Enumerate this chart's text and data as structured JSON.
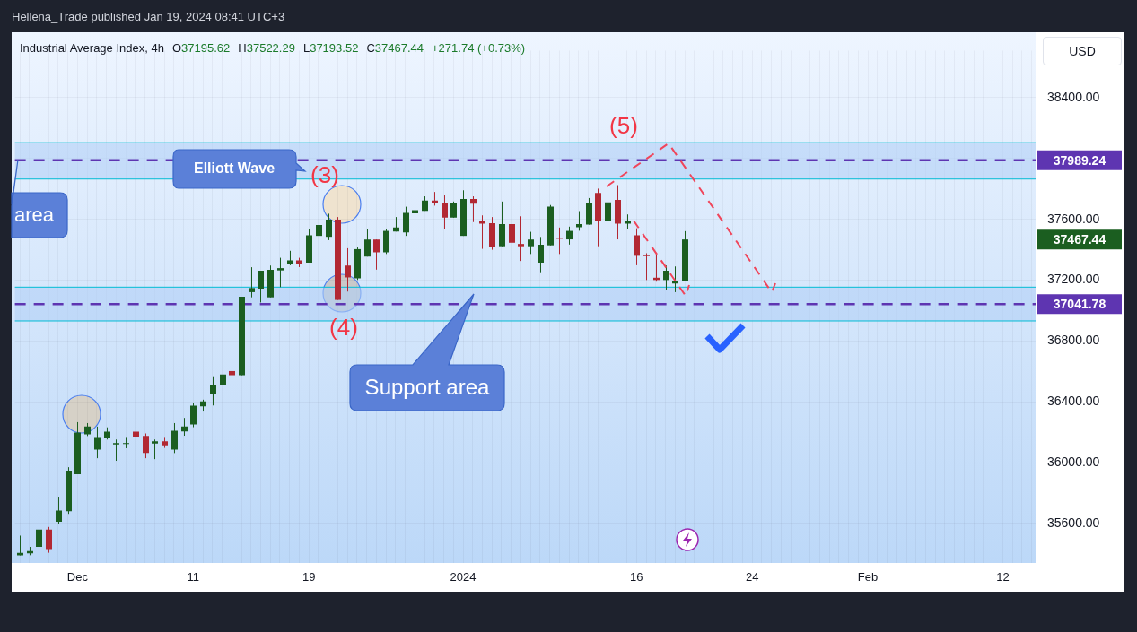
{
  "chart_data": {
    "type": "candlestick",
    "title": "Hellena_Trade published Jan 19, 2024 08:41 UTC+3",
    "subtitle": "Industrial Average Index, 4h",
    "ylabel": "USD",
    "categories": [
      null,
      null,
      null,
      null,
      null,
      null,
      "Dec",
      null,
      null,
      null,
      null,
      null,
      null,
      null,
      null,
      null,
      null,
      null,
      "11",
      null,
      null,
      null,
      null,
      null,
      null,
      null,
      null,
      null,
      null,
      null,
      "19",
      null,
      null,
      null,
      null,
      null,
      null,
      null,
      null,
      null,
      null,
      null,
      null,
      null,
      null,
      null,
      "2024",
      null,
      null,
      null,
      null,
      null,
      null,
      null,
      null,
      null,
      null,
      null,
      null,
      null,
      null,
      null,
      null,
      null,
      "16",
      null,
      null,
      null,
      null,
      null,
      null,
      null,
      null,
      null,
      null,
      null,
      "24",
      null,
      null,
      null,
      null,
      null,
      null,
      null,
      null,
      null,
      null,
      null,
      "Feb",
      null,
      null,
      null,
      null,
      null,
      null,
      null,
      null,
      null,
      null,
      null,
      null,
      null,
      "12",
      null,
      null,
      null
    ],
    "ohlc": [
      [
        35390,
        35520,
        35390,
        35407
      ],
      [
        35403,
        35446,
        35391,
        35418
      ],
      [
        35446,
        35560,
        35414,
        35560
      ],
      [
        35560,
        35577,
        35407,
        35431
      ],
      [
        35611,
        35776,
        35596,
        35685
      ],
      [
        35680,
        35970,
        35663,
        35947
      ],
      [
        35924,
        36266,
        35924,
        36198
      ],
      [
        36186,
        36260,
        36175,
        36237
      ],
      [
        36086,
        36237,
        36029,
        36163
      ],
      [
        36160,
        36232,
        36152,
        36203
      ],
      [
        36120,
        36152,
        36012,
        36129
      ],
      [
        36125,
        36163,
        36095,
        36129
      ],
      [
        36203,
        36294,
        36120,
        36171
      ],
      [
        36175,
        36192,
        36029,
        36063
      ],
      [
        36125,
        36152,
        36023,
        36141
      ],
      [
        36141,
        36163,
        36097,
        36114
      ],
      [
        36086,
        36260,
        36063,
        36209
      ],
      [
        36205,
        36294,
        36177,
        36237
      ],
      [
        36251,
        36391,
        36233,
        36374
      ],
      [
        36370,
        36414,
        36336,
        36402
      ],
      [
        36450,
        36568,
        36376,
        36511
      ],
      [
        36507,
        36596,
        36501,
        36579
      ],
      [
        36602,
        36619,
        36524,
        36575
      ],
      [
        36575,
        37091,
        36575,
        37091
      ],
      [
        37121,
        37285,
        37087,
        37148
      ],
      [
        37144,
        37262,
        37053,
        37262
      ],
      [
        37087,
        37296,
        37087,
        37268
      ],
      [
        37264,
        37347,
        37154,
        37279
      ],
      [
        37309,
        37393,
        37298,
        37330
      ],
      [
        37330,
        37347,
        37286,
        37304
      ],
      [
        37315,
        37537,
        37315,
        37495
      ],
      [
        37491,
        37563,
        37480,
        37563
      ],
      [
        37485,
        37637,
        37463,
        37598
      ],
      [
        37598,
        37615,
        37070,
        37070
      ],
      [
        37296,
        37410,
        37125,
        37218
      ],
      [
        37212,
        37415,
        37201,
        37404
      ],
      [
        37355,
        37535,
        37355,
        37467
      ],
      [
        37467,
        37467,
        37269,
        37383
      ],
      [
        37383,
        37535,
        37372,
        37524
      ],
      [
        37520,
        37615,
        37520,
        37546
      ],
      [
        37514,
        37683,
        37491,
        37643
      ],
      [
        37639,
        37660,
        37546,
        37660
      ],
      [
        37656,
        37751,
        37656,
        37723
      ],
      [
        37723,
        37780,
        37690,
        37708
      ],
      [
        37706,
        37757,
        37537,
        37611
      ],
      [
        37611,
        37717,
        37611,
        37706
      ],
      [
        37491,
        37791,
        37491,
        37734
      ],
      [
        37734,
        37751,
        37582,
        37702
      ],
      [
        37592,
        37626,
        37406,
        37571
      ],
      [
        37575,
        37615,
        37400,
        37417
      ],
      [
        37423,
        37717,
        37423,
        37569
      ],
      [
        37569,
        37575,
        37435,
        37446
      ],
      [
        37438,
        37620,
        37326,
        37423
      ],
      [
        37423,
        37518,
        37372,
        37467
      ],
      [
        37315,
        37484,
        37252,
        37433
      ],
      [
        37429,
        37694,
        37429,
        37683
      ],
      [
        37478,
        37546,
        37372,
        37474
      ],
      [
        37468,
        37552,
        37434,
        37524
      ],
      [
        37548,
        37654,
        37525,
        37569
      ],
      [
        37565,
        37740,
        37565,
        37706
      ],
      [
        37774,
        37802,
        37423,
        37588
      ],
      [
        37588,
        37734,
        37577,
        37711
      ],
      [
        37728,
        37825,
        37468,
        37571
      ],
      [
        37571,
        37632,
        37537,
        37592
      ],
      [
        37495,
        37541,
        37298,
        37360
      ],
      [
        37364,
        37377,
        37201,
        37360
      ],
      [
        37216,
        37370,
        37190,
        37201
      ],
      [
        37201,
        37296,
        37133,
        37262
      ],
      [
        37178,
        37290,
        37121,
        37193
      ],
      [
        37195.62,
        37522.29,
        37193.52,
        37467.44
      ],
      null,
      null,
      null,
      null,
      null,
      null,
      null,
      null,
      null,
      null,
      null,
      null,
      null,
      null,
      null,
      null,
      null,
      null,
      null,
      null,
      null,
      null,
      null,
      null,
      null,
      null,
      null,
      null,
      null,
      null,
      null,
      null,
      null,
      null,
      null,
      null
    ],
    "colors": [
      "#1b5e20",
      "#1b5e20",
      "#1b5e20",
      "#b22833",
      "#1b5e20",
      "#1b5e20",
      "#1b5e20",
      "#1b5e20",
      "#1b5e20",
      "#1b5e20",
      "#1b5e20",
      "#1b5e20",
      "#b22833",
      "#b22833",
      "#1b5e20",
      "#b22833",
      "#1b5e20",
      "#1b5e20",
      "#1b5e20",
      "#1b5e20",
      "#1b5e20",
      "#1b5e20",
      "#b22833",
      "#1b5e20",
      "#1b5e20",
      "#1b5e20",
      "#1b5e20",
      "#1b5e20",
      "#1b5e20",
      "#b22833",
      "#1b5e20",
      "#1b5e20",
      "#1b5e20",
      "#b22833",
      "#b22833",
      "#1b5e20",
      "#1b5e20",
      "#b22833",
      "#1b5e20",
      "#1b5e20",
      "#1b5e20",
      "#1b5e20",
      "#1b5e20",
      "#b22833",
      "#b22833",
      "#1b5e20",
      "#1b5e20",
      "#b22833",
      "#b22833",
      "#b22833",
      "#1b5e20",
      "#b22833",
      "#b22833",
      "#1b5e20",
      "#1b5e20",
      "#1b5e20",
      "#b22833",
      "#1b5e20",
      "#1b5e20",
      "#1b5e20",
      "#b22833",
      "#1b5e20",
      "#b22833",
      "#1b5e20",
      "#b22833",
      "#b22833",
      "#b22833",
      "#1b5e20",
      "#1b5e20",
      "#1b5e20",
      null,
      null,
      null,
      null,
      null,
      null,
      null,
      null,
      null,
      null,
      null,
      null,
      null,
      null,
      null,
      null,
      null,
      null,
      null,
      null,
      null,
      null,
      null,
      null,
      null,
      null,
      null,
      null,
      null,
      null,
      null,
      null,
      null,
      null,
      null,
      null
    ],
    "ylim": [
      35340,
      38710
    ],
    "yticks": [
      {
        "value": 35600,
        "label": "35600.00"
      },
      {
        "value": 36000,
        "label": "36000.00"
      },
      {
        "value": 36400,
        "label": "36400.00"
      },
      {
        "value": 36800,
        "label": "36800.00"
      },
      {
        "value": 37200,
        "label": "37200.00"
      },
      {
        "value": 37600,
        "label": "37600.00"
      },
      {
        "value": 38000,
        "label": null
      },
      {
        "value": 38400,
        "label": "38400.00"
      }
    ],
    "grid": true,
    "ref_lines": [
      {
        "axis": "y",
        "value": 37989.24,
        "label": "37989.24",
        "color": "#5e35b1",
        "line_style": "dashed"
      },
      {
        "axis": "y",
        "value": 37041.78,
        "label": "37041.78",
        "color": "#5e35b1",
        "line_style": "dashed"
      },
      {
        "axis": "y",
        "value": 38104,
        "color": "#00bcd4",
        "line_style": "solid"
      },
      {
        "axis": "y",
        "value": 37865,
        "color": "#00bcd4",
        "line_style": "solid"
      },
      {
        "axis": "y",
        "value": 37154,
        "color": "#00bcd4",
        "line_style": "solid"
      },
      {
        "axis": "y",
        "value": 36932,
        "color": "#00bcd4",
        "line_style": "solid"
      }
    ],
    "bands": [
      {
        "axis": "y",
        "from": 37865,
        "to": 38104,
        "color": "#b3d1f7"
      },
      {
        "axis": "y",
        "from": 36932,
        "to": 37154,
        "color": "#b3d1f7"
      }
    ],
    "annotations": [
      "O37195.62",
      "H37522.29",
      "L37193.52",
      "C37467.44",
      "+271.74 (+0.73%)",
      "Elliott Wave",
      "(3)",
      "(4)",
      "(5)",
      "area",
      "Support area",
      "37467.44"
    ]
  }
}
